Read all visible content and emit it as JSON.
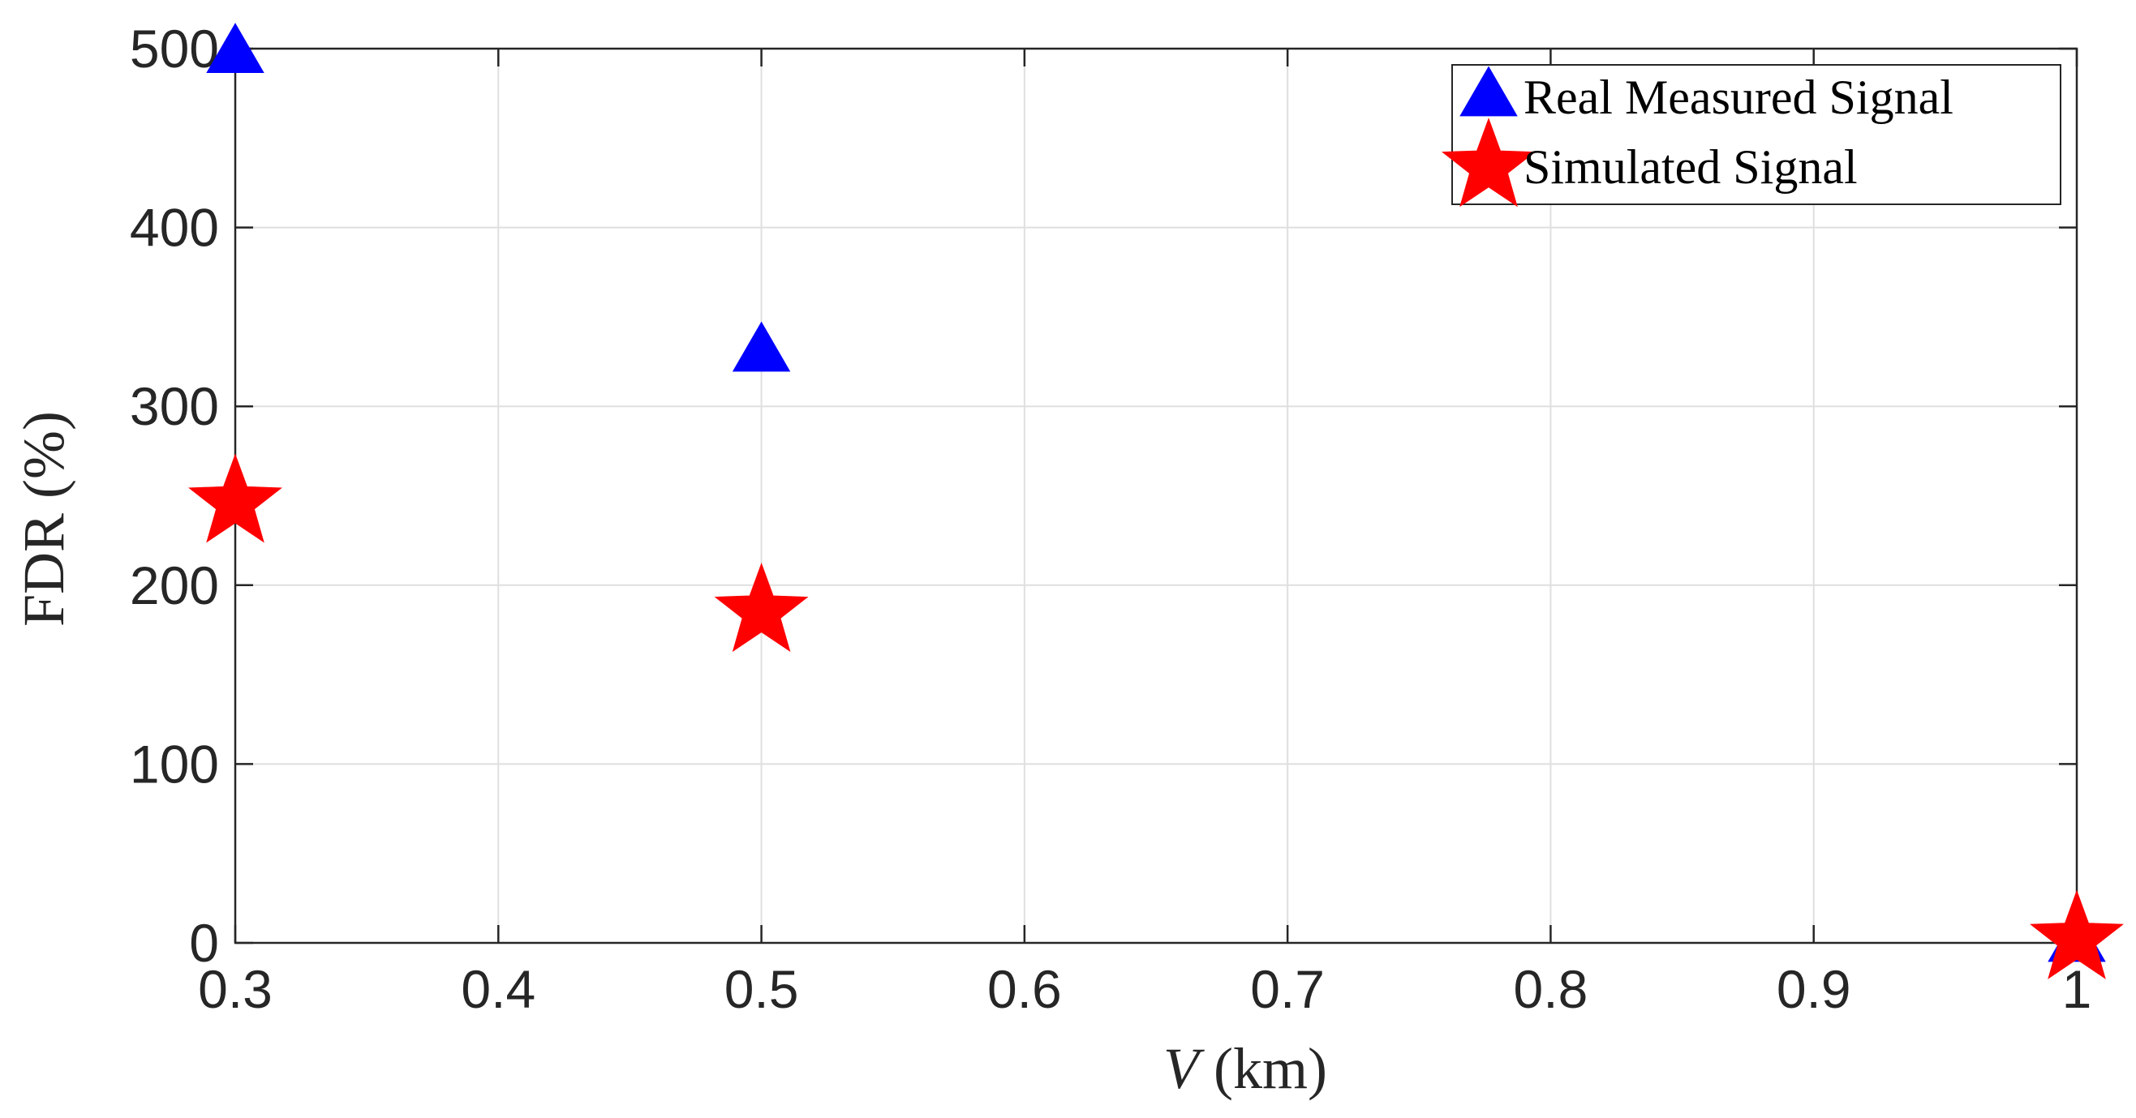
{
  "chart_data": {
    "type": "scatter",
    "xlabel_var": "V",
    "xlabel_unit": " (km)",
    "ylabel": "FDR (%)",
    "xlim": [
      0.3,
      1.0
    ],
    "ylim": [
      0,
      500
    ],
    "xticks": [
      0.3,
      0.4,
      0.5,
      0.6,
      0.7,
      0.8,
      0.9,
      1.0
    ],
    "xtick_labels": [
      "0.3",
      "0.4",
      "0.5",
      "0.6",
      "0.7",
      "0.8",
      "0.9",
      "1"
    ],
    "yticks": [
      0,
      100,
      200,
      300,
      400,
      500
    ],
    "ytick_labels": [
      "0",
      "100",
      "200",
      "300",
      "400",
      "500"
    ],
    "grid": true,
    "legend_position": "top-right",
    "series": [
      {
        "name": "Real Measured Signal",
        "marker": "triangle",
        "color": "#0000ff",
        "x": [
          0.3,
          0.5,
          1.0
        ],
        "y": [
          497,
          330,
          0
        ]
      },
      {
        "name": "Simulated Signal",
        "marker": "star",
        "color": "#ff0000",
        "x": [
          0.3,
          0.5,
          1.0
        ],
        "y": [
          246,
          185,
          2
        ]
      }
    ]
  }
}
